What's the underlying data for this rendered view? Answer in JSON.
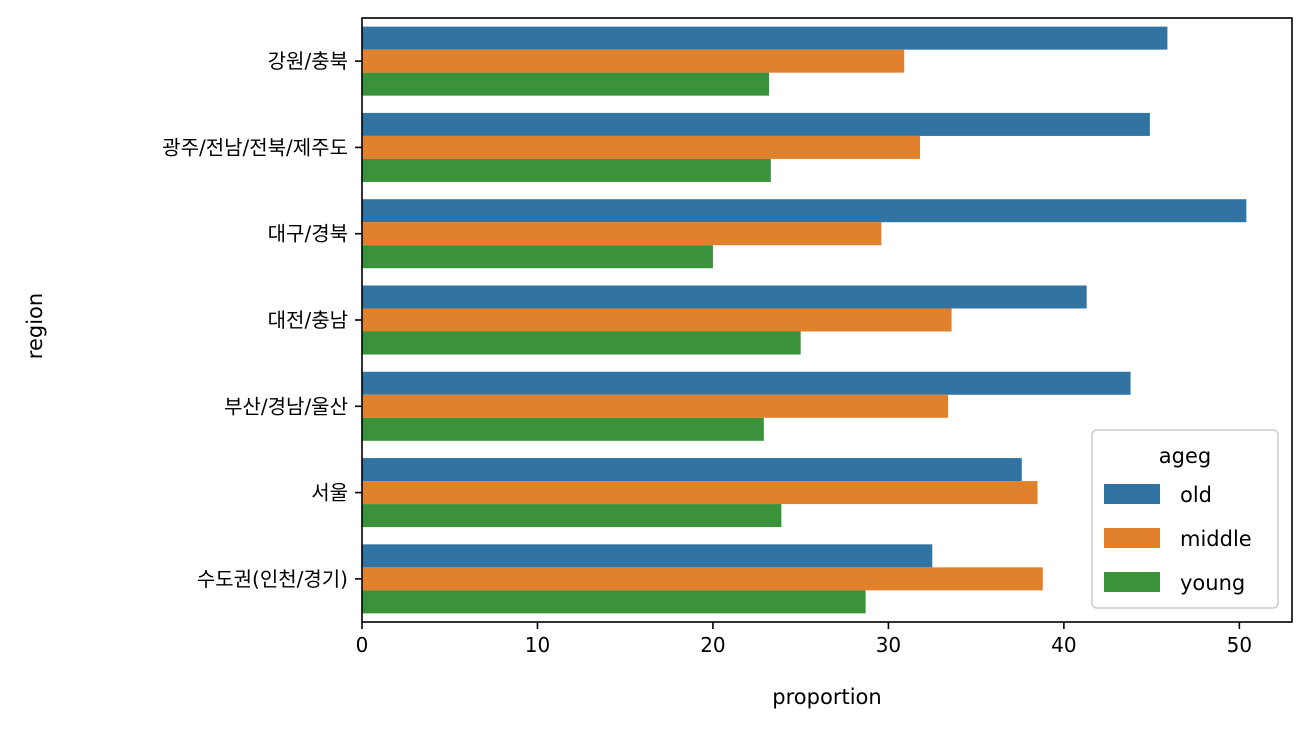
{
  "chart_data": {
    "type": "bar",
    "orientation": "horizontal",
    "xlabel": "proportion",
    "ylabel": "region",
    "xlim": [
      0,
      53
    ],
    "xticks": [
      0,
      10,
      20,
      30,
      40,
      50
    ],
    "grid": false,
    "categories": [
      "강원/충북",
      "광주/전남/전북/제주도",
      "대구/경북",
      "대전/충남",
      "부산/경남/울산",
      "서울",
      "수도권(인천/경기)"
    ],
    "series": [
      {
        "name": "old",
        "color": "#3274a1",
        "values": [
          45.9,
          44.9,
          50.4,
          41.3,
          43.8,
          37.6,
          32.5
        ]
      },
      {
        "name": "middle",
        "color": "#e1812c",
        "values": [
          30.9,
          31.8,
          29.6,
          33.6,
          33.4,
          38.5,
          38.8
        ]
      },
      {
        "name": "young",
        "color": "#3a923a",
        "values": [
          23.2,
          23.3,
          20.0,
          25.0,
          22.9,
          23.9,
          28.7
        ]
      }
    ],
    "legend": {
      "title": "ageg",
      "position": "lower right"
    }
  }
}
